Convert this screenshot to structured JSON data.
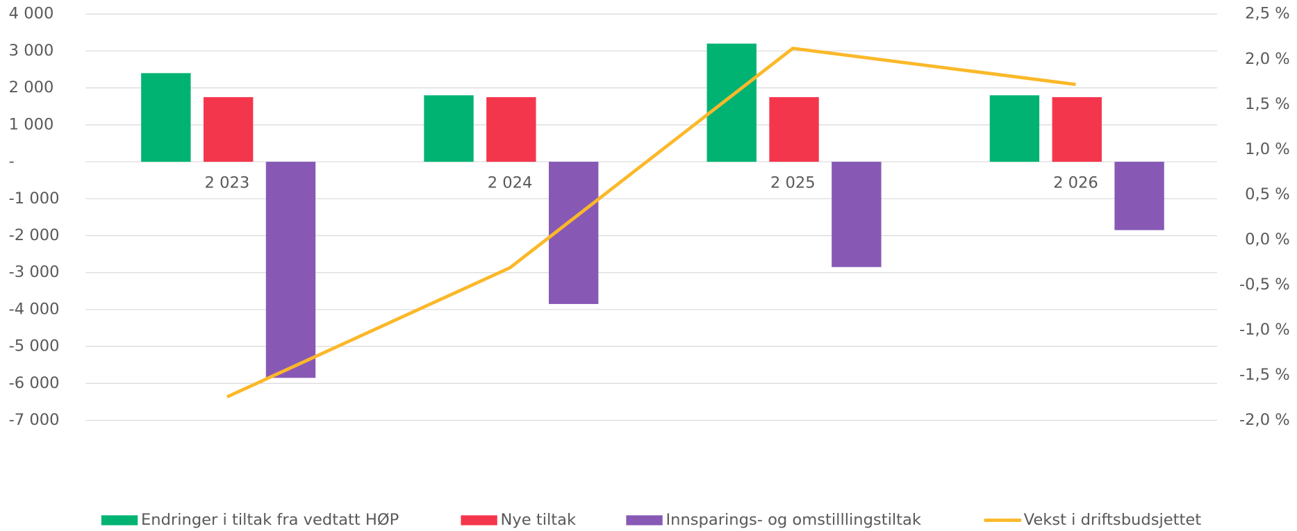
{
  "chart_data": {
    "type": "bar",
    "categories": [
      "2 023",
      "2 024",
      "2 025",
      "2 026"
    ],
    "series": [
      {
        "name": "Endringer i tiltak fra vedtatt HØP",
        "color": "#00b373",
        "values": [
          2400,
          1800,
          3200,
          1800
        ]
      },
      {
        "name": "Nye tiltak",
        "color": "#f4364c",
        "values": [
          1750,
          1750,
          1750,
          1750
        ]
      },
      {
        "name": "Innsparings- og omstilllingstiltak",
        "color": "#8759b5",
        "values": [
          -5850,
          -3850,
          -2850,
          -1850
        ]
      },
      {
        "name": "Vekst i driftsbudsjettet",
        "color": "#fbb829",
        "type": "line",
        "axis": "y2",
        "values": [
          -1.74,
          -0.31,
          2.12,
          1.72
        ]
      }
    ],
    "ylim": [
      -7000,
      4000
    ],
    "yticks": [
      {
        "value": -7000,
        "label": "-7 000"
      },
      {
        "value": -6000,
        "label": "-6 000"
      },
      {
        "value": -5000,
        "label": "-5 000"
      },
      {
        "value": -4000,
        "label": "-4 000"
      },
      {
        "value": -3000,
        "label": "-3 000"
      },
      {
        "value": -2000,
        "label": "-2 000"
      },
      {
        "value": -1000,
        "label": "-1 000"
      },
      {
        "value": 0,
        "label": "-"
      },
      {
        "value": 1000,
        "label": "1 000"
      },
      {
        "value": 2000,
        "label": "2 000"
      },
      {
        "value": 3000,
        "label": "3 000"
      },
      {
        "value": 4000,
        "label": "4 000"
      }
    ],
    "y2lim": [
      -2.0,
      2.5
    ],
    "y2ticks": [
      {
        "value": -2.0,
        "label": "-2,0 %"
      },
      {
        "value": -1.5,
        "label": "-1,5 %"
      },
      {
        "value": -1.0,
        "label": "-1,0 %"
      },
      {
        "value": -0.5,
        "label": "-0,5 %"
      },
      {
        "value": 0.0,
        "label": "0,0 %"
      },
      {
        "value": 0.5,
        "label": "0,5 %"
      },
      {
        "value": 1.0,
        "label": "1,0 %"
      },
      {
        "value": 1.5,
        "label": "1,5 %"
      },
      {
        "value": 2.0,
        "label": "2,0 %"
      },
      {
        "value": 2.5,
        "label": "2,5 %"
      }
    ],
    "grid": true,
    "legend": "bottom"
  }
}
